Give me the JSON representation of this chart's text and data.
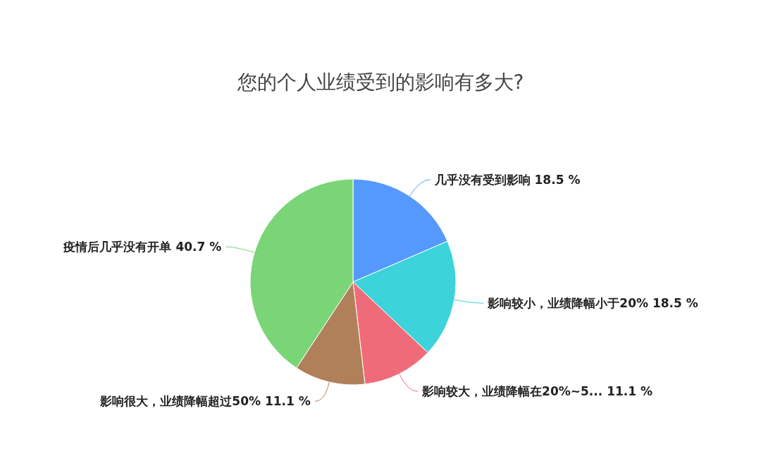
{
  "chart_data": {
    "type": "pie",
    "title": "您的个人业绩受到的影响有多大?",
    "categories": [
      "几乎没有受到影响",
      "影响较小，业绩降幅小于20%",
      "影响较大，业绩降幅在20%~5...",
      "影响很大，业绩降幅超过50%",
      "疫情后几乎没有开单"
    ],
    "values": [
      18.5,
      18.5,
      11.1,
      11.1,
      40.7
    ],
    "value_labels": [
      "18.5 %",
      "18.5 %",
      "11.1 %",
      "11.1 %",
      "40.7 %"
    ],
    "colors": [
      "#5599ff",
      "#3cd3db",
      "#f06b7a",
      "#b0805a",
      "#7ad576"
    ],
    "legend": false
  }
}
